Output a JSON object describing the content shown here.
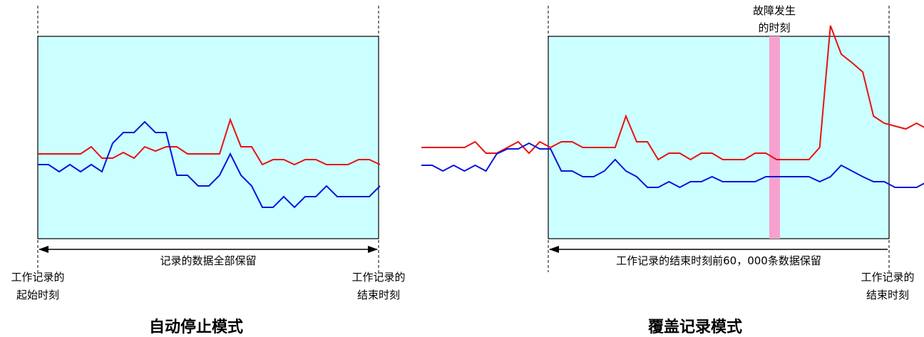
{
  "colors": {
    "area": "#ccffff",
    "red": "#e81010",
    "blue": "#0a14dc",
    "fault": "#f7a1cf"
  },
  "auto": {
    "span_label": "记录的数据全部保留",
    "start_label": [
      "工作记录的",
      "起始时刻"
    ],
    "end_label": [
      "工作记录的",
      "结束时刻"
    ],
    "mode_title": "自动停止模式",
    "red": [
      72,
      72,
      72,
      72,
      72,
      62,
      78,
      78,
      70,
      78,
      62,
      68,
      62,
      62,
      72,
      72,
      72,
      72,
      24,
      62,
      62,
      87,
      80,
      80,
      87,
      80,
      80,
      87,
      87,
      87,
      80,
      80,
      87
    ],
    "blue": [
      87,
      87,
      97,
      87,
      97,
      87,
      97,
      57,
      42,
      42,
      27,
      42,
      42,
      102,
      102,
      117,
      117,
      102,
      72,
      102,
      117,
      147,
      147,
      132,
      147,
      132,
      132,
      117,
      132,
      132,
      132,
      132,
      117
    ]
  },
  "overwrite": {
    "fault_label": [
      "故障发生",
      "的时刻"
    ],
    "span_label": "工作记录的结束时刻前60，000条数据保留",
    "end_label": [
      "工作记录的",
      "结束时刻"
    ],
    "mode_title": "覆盖记录模式",
    "red": [
      46,
      46,
      46,
      46,
      46,
      38,
      54,
      54,
      46,
      38,
      54,
      38,
      46,
      38,
      38,
      46,
      46,
      46,
      46,
      2,
      38,
      38,
      63,
      54,
      54,
      63,
      54,
      54,
      63,
      63,
      63,
      54,
      54,
      63,
      63,
      63,
      63,
      46,
      -125,
      -85,
      -73,
      -60,
      2,
      12,
      16,
      20,
      12,
      20,
      12,
      12,
      12
    ],
    "blue": [
      71,
      71,
      79,
      71,
      79,
      71,
      79,
      55,
      48,
      48,
      40,
      48,
      48,
      79,
      79,
      87,
      87,
      79,
      63,
      79,
      87,
      102,
      102,
      94,
      102,
      94,
      94,
      87,
      94,
      94,
      94,
      94,
      87,
      87,
      87,
      87,
      87,
      94,
      87,
      71,
      79,
      87,
      94,
      94,
      102,
      102,
      102,
      94,
      94,
      102,
      102
    ]
  }
}
